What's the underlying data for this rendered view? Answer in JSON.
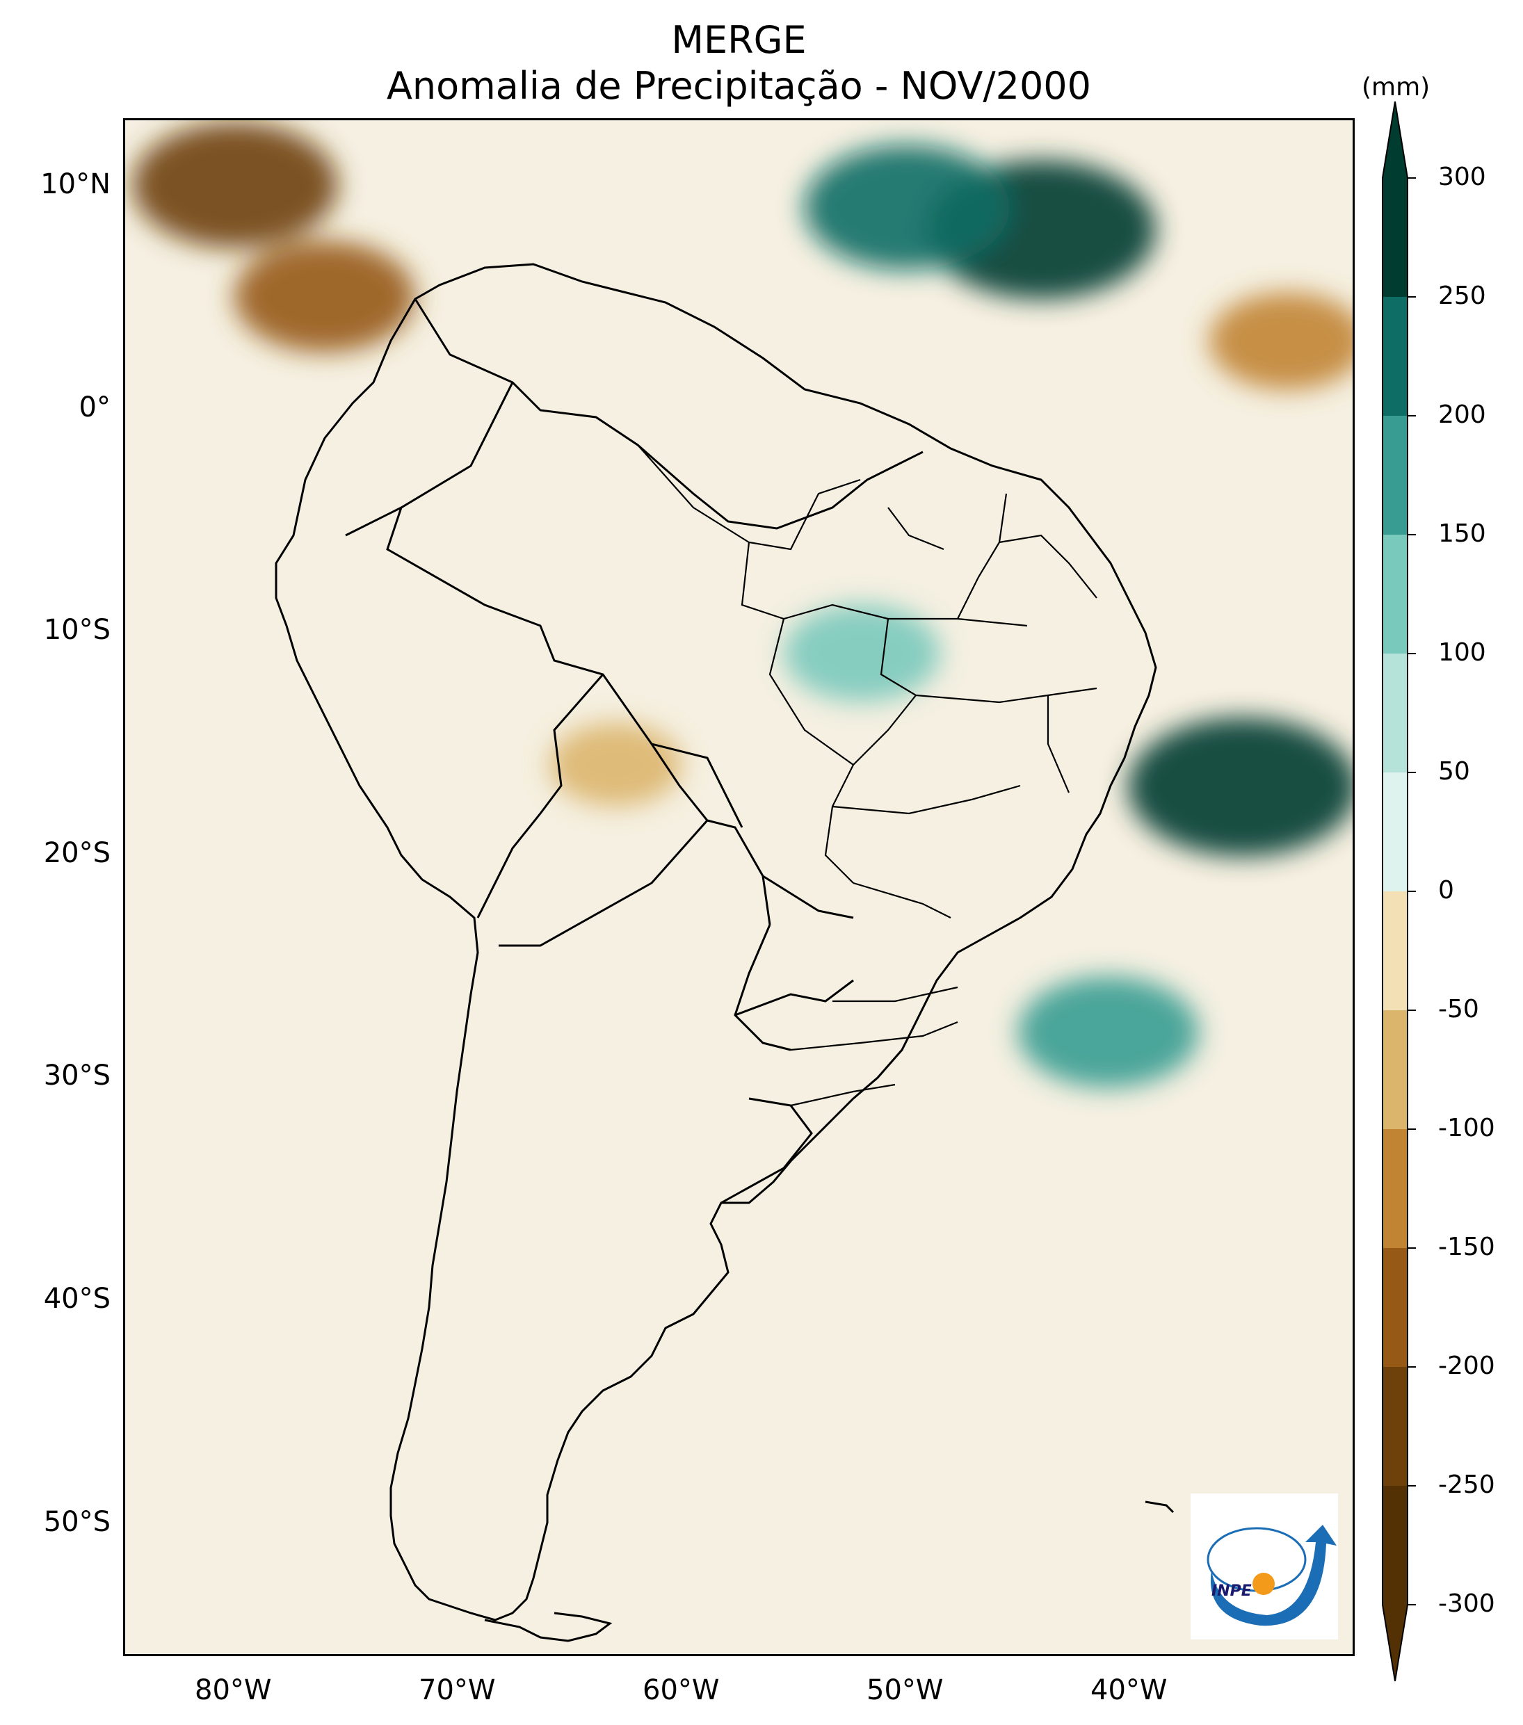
{
  "title": {
    "line1": "MERGE",
    "line2": "Anomalia de Precipitação - NOV/2000"
  },
  "map": {
    "region": "South America",
    "variable": "precipitation anomaly",
    "extent": {
      "lon_min": -85,
      "lon_max": -30,
      "lat_min": -56,
      "lat_max": 13
    },
    "lat_ticks": [
      {
        "lat": 10,
        "label": "10°N"
      },
      {
        "lat": 0,
        "label": "0°"
      },
      {
        "lat": -10,
        "label": "10°S"
      },
      {
        "lat": -20,
        "label": "20°S"
      },
      {
        "lat": -30,
        "label": "30°S"
      },
      {
        "lat": -40,
        "label": "40°S"
      },
      {
        "lat": -50,
        "label": "50°S"
      }
    ],
    "lon_ticks": [
      {
        "lon": -80,
        "label": "80°W"
      },
      {
        "lon": -70,
        "label": "70°W"
      },
      {
        "lon": -60,
        "label": "60°W"
      },
      {
        "lon": -50,
        "label": "50°W"
      },
      {
        "lon": -40,
        "label": "40°W"
      }
    ],
    "anomaly_areas": [
      {
        "name": "Atlantic ITCZ wet band",
        "lon": -44,
        "lat": 8,
        "level": 300
      },
      {
        "name": "Atlantic ITCZ wet band west",
        "lon": -50,
        "lat": 9,
        "level": 250
      },
      {
        "name": "Offshore Bahia wet",
        "lon": -35,
        "lat": -17,
        "level": 300
      },
      {
        "name": "Central Brazil wet",
        "lon": -52,
        "lat": -11,
        "level": 150
      },
      {
        "name": "Northern Colombia dry",
        "lon": -80,
        "lat": 10,
        "level": -250
      },
      {
        "name": "Colombian Pacific coast dry",
        "lon": -76,
        "lat": 5,
        "level": -200
      },
      {
        "name": "Atlantic off Guianas dry",
        "lon": -33,
        "lat": 3,
        "level": -150
      },
      {
        "name": "Bolivia dry",
        "lon": -63,
        "lat": -16,
        "level": -100
      },
      {
        "name": "Offshore southern Brazil wet",
        "lon": -41,
        "lat": -28,
        "level": 200
      }
    ]
  },
  "colorbar": {
    "unit": "(mm)",
    "levels": [
      300,
      250,
      200,
      150,
      100,
      50,
      0,
      -50,
      -100,
      -150,
      -200,
      -250,
      -300
    ],
    "labels": [
      "300",
      "250",
      "200",
      "150",
      "100",
      "50",
      "0",
      "-50",
      "-100",
      "-150",
      "-200",
      "-250",
      "-300"
    ],
    "colors": [
      "#003c30",
      "#0e6d65",
      "#389c92",
      "#7ac9bd",
      "#b5e3da",
      "#def2ee",
      "#f5f0e1",
      "#f3e0b5",
      "#dcb56d",
      "#c18433",
      "#965a16",
      "#6e400a",
      "#543005"
    ],
    "extend": "both"
  },
  "logo": {
    "text": "INPE"
  }
}
